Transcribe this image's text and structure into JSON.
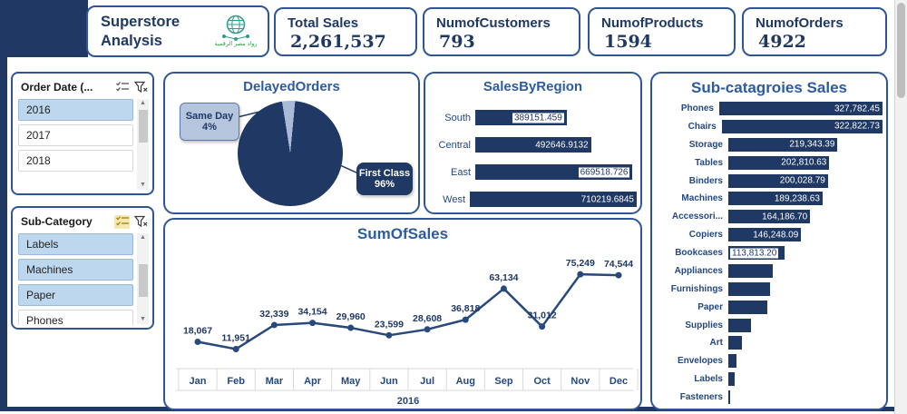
{
  "colors": {
    "navy": "#1F3864",
    "card_border": "#2F5597",
    "chart_title": "#2E5B9F",
    "bar": "#1F3864",
    "selected_item": "#BDD7EE",
    "pie_light_slice": "#A9BAD8",
    "logo_teal": "#2E9C8F",
    "logo_green": "#2F9E44"
  },
  "header": {
    "title": {
      "line1": "Superstore",
      "line2": "Analysis"
    },
    "logo_text": "رواد مصر الرقمية",
    "kpis": [
      {
        "label": "Total Sales",
        "value": "2,261,537"
      },
      {
        "label": "NumofCustomers",
        "value": "793"
      },
      {
        "label": "NumofProducts",
        "value": "1594"
      },
      {
        "label": "NumofOrders",
        "value": "4922"
      }
    ]
  },
  "slicers": {
    "order_date": {
      "title": "Order Date (...",
      "items": [
        {
          "label": "2016",
          "selected": true
        },
        {
          "label": "2017",
          "selected": false
        },
        {
          "label": "2018",
          "selected": false
        }
      ]
    },
    "sub_category": {
      "title": "Sub-Category",
      "items": [
        {
          "label": "Labels",
          "selected": true
        },
        {
          "label": "Machines",
          "selected": true
        },
        {
          "label": "Paper",
          "selected": true
        },
        {
          "label": "Phones",
          "selected": false,
          "partially_visible": true
        }
      ]
    }
  },
  "chart_data": [
    {
      "name": "delayed_orders",
      "type": "pie",
      "title": "DelayedOrders",
      "slices": [
        {
          "label": "First Class",
          "value_pct": 96,
          "pct_label": "96%",
          "color": "#1F3864"
        },
        {
          "label": "Same Day",
          "value_pct": 4,
          "pct_label": "4%",
          "color": "#A9BAD8"
        }
      ],
      "legend_position": "callouts"
    },
    {
      "name": "sales_by_region",
      "type": "bar",
      "orientation": "horizontal",
      "title": "SalesByRegion",
      "categories": [
        "South",
        "Central",
        "East",
        "West"
      ],
      "values": [
        389151.459,
        492646.9132,
        669518.726,
        710219.6845
      ],
      "value_labels": [
        "389151.459",
        "492646.9132",
        "669518.726",
        "710219.6845"
      ],
      "label_styles": [
        "chip",
        "white",
        "chip",
        "white"
      ]
    },
    {
      "name": "sub_categories_sales",
      "type": "bar",
      "orientation": "horizontal",
      "title": "Sub-catagroies Sales",
      "categories": [
        "Phones",
        "Chairs",
        "Storage",
        "Tables",
        "Binders",
        "Machines",
        "Accessori...",
        "Copiers",
        "Bookcases",
        "Appliances",
        "Furnishings",
        "Paper",
        "Supplies",
        "Art",
        "Envelopes",
        "Labels",
        "Fasteners"
      ],
      "values": [
        327782.45,
        322822.73,
        219343.39,
        202810.63,
        200028.79,
        189238.63,
        164186.7,
        146248.09,
        113813.2,
        89000,
        84000,
        78000,
        46000,
        27000,
        16000,
        12500,
        3500
      ],
      "value_labels": [
        "327,782.45",
        "322,822.73",
        "219,343.39",
        "202,810.63",
        "200,028.79",
        "189,238.63",
        "164,186.70",
        "146,248.09",
        "113,813.20",
        null,
        null,
        null,
        null,
        null,
        null,
        null,
        null
      ],
      "label_styles": [
        "white",
        "white",
        "white",
        "white",
        "white",
        "white",
        "white",
        "white",
        "chip-left",
        null,
        null,
        null,
        null,
        null,
        null,
        null,
        null
      ],
      "unlabeled_values_estimated": true
    },
    {
      "name": "sum_of_sales",
      "type": "line",
      "title": "SumOfSales",
      "x": [
        "Jan",
        "Feb",
        "Mar",
        "Apr",
        "May",
        "Jun",
        "Jul",
        "Aug",
        "Sep",
        "Oct",
        "Nov",
        "Dec"
      ],
      "x_group_label": "2016",
      "values": [
        18067,
        11951,
        32339,
        34154,
        29960,
        23599,
        28608,
        36818,
        63134,
        31012,
        75249,
        74544
      ],
      "value_labels": [
        "18,067",
        "11,951",
        "32,339",
        "34,154",
        "29,960",
        "23,599",
        "28,608",
        "36,818",
        "63,134",
        "31,012",
        "75,249",
        "74,544"
      ],
      "ylim": [
        0,
        80000
      ],
      "grid": "axis-band-only"
    }
  ]
}
